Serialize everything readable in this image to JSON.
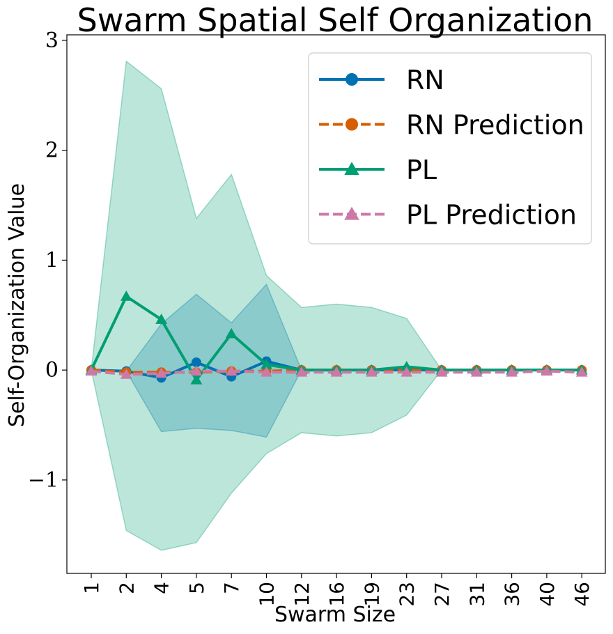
{
  "chart_data": {
    "type": "line",
    "title": "Swarm Spatial Self Organization",
    "xlabel": "Swarm Size",
    "ylabel": "Self-Organization Value",
    "categories": [
      "1",
      "2",
      "4",
      "5",
      "7",
      "10",
      "12",
      "16",
      "19",
      "23",
      "27",
      "31",
      "36",
      "40",
      "46"
    ],
    "ylim": [
      -1.85,
      3.05
    ],
    "yticks": [
      -1,
      0,
      1,
      2,
      3
    ],
    "ytick_labels": [
      "−1",
      "0",
      "1",
      "2",
      "3"
    ],
    "grid": false,
    "legend_position": "top-right",
    "series": [
      {
        "name": "RN",
        "values": [
          0.0,
          -0.01,
          -0.07,
          0.07,
          -0.06,
          0.08,
          0.0,
          0.0,
          0.0,
          0.0,
          0.0,
          0.0,
          0.0,
          0.0,
          0.0
        ],
        "color": "#0072b2",
        "dash": "solid",
        "marker": "circle",
        "band_lower": [
          0.0,
          -0.01,
          -0.56,
          -0.53,
          -0.55,
          -0.61,
          0.0,
          0.0,
          0.0,
          0.0,
          0.0,
          0.0,
          0.0,
          0.0,
          0.0
        ],
        "band_upper": [
          0.0,
          -0.01,
          0.42,
          0.69,
          0.43,
          0.78,
          0.0,
          0.0,
          0.0,
          0.0,
          0.0,
          0.0,
          0.0,
          0.0,
          0.0
        ],
        "band_color": "#0072b2"
      },
      {
        "name": "RN Prediction",
        "values": [
          0.0,
          -0.02,
          -0.02,
          -0.02,
          -0.01,
          -0.01,
          0.0,
          0.0,
          0.0,
          0.0,
          0.0,
          0.0,
          0.0,
          0.0,
          0.0
        ],
        "color": "#d55e00",
        "dash": "dashed",
        "marker": "circle"
      },
      {
        "name": "PL",
        "values": [
          0.0,
          0.67,
          0.46,
          -0.09,
          0.33,
          0.05,
          0.0,
          0.0,
          0.0,
          0.03,
          0.0,
          0.0,
          0.0,
          0.0,
          0.0
        ],
        "color": "#009e73",
        "dash": "solid",
        "marker": "triangle",
        "band_lower": [
          0.0,
          -1.46,
          -1.64,
          -1.57,
          -1.12,
          -0.76,
          -0.57,
          -0.6,
          -0.57,
          -0.41,
          0.0,
          0.0,
          0.0,
          0.0,
          0.0
        ],
        "band_upper": [
          0.0,
          2.81,
          2.56,
          1.38,
          1.78,
          0.86,
          0.57,
          0.6,
          0.57,
          0.47,
          0.0,
          0.0,
          0.0,
          0.0,
          0.0
        ],
        "band_color": "#009e73"
      },
      {
        "name": "PL Prediction",
        "values": [
          -0.01,
          -0.04,
          -0.03,
          -0.01,
          -0.01,
          -0.02,
          -0.02,
          -0.02,
          -0.02,
          -0.02,
          -0.02,
          -0.02,
          -0.02,
          -0.01,
          -0.02
        ],
        "color": "#cc79a7",
        "dash": "dashed",
        "marker": "triangle"
      }
    ]
  }
}
